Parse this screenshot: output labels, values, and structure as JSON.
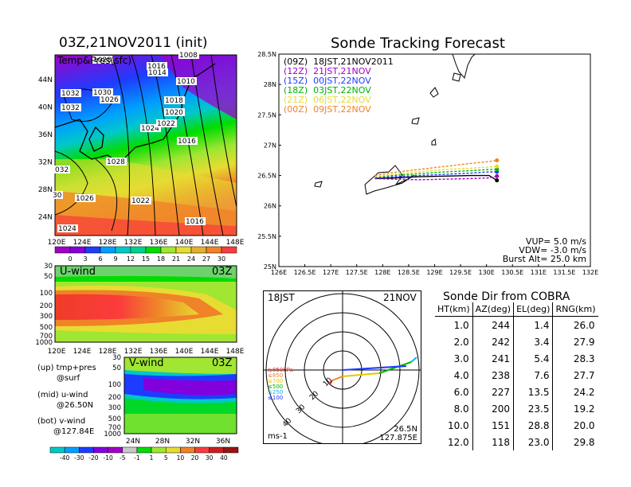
{
  "left_panel": {
    "title": "03Z,21NOV2011 (init)",
    "map_label": "Temp&Pres(sfc)",
    "x_ticks": [
      "120E",
      "124E",
      "128E",
      "132E",
      "136E",
      "140E",
      "144E",
      "148E"
    ],
    "y_ticks": [
      "24N",
      "28N",
      "32N",
      "36N",
      "40N",
      "44N"
    ],
    "isobar_labels": [
      "1028",
      "1016",
      "1014",
      "1008",
      "1010",
      "1032",
      "1030",
      "1026",
      "1032",
      "1018",
      "1020",
      "1024",
      "1022",
      "1016",
      "1028",
      "032",
      "1026",
      "1022",
      "30",
      "1016",
      "1024"
    ],
    "colorbar_labels": [
      "0",
      "3",
      "6",
      "9",
      "12",
      "15",
      "18",
      "21",
      "24",
      "27",
      "30"
    ],
    "colors": [
      "#a000c8",
      "#8200dc",
      "#1e3cff",
      "#00a0ff",
      "#00c8c8",
      "#00d28c",
      "#00dc00",
      "#a0e632",
      "#e6dc32",
      "#e6af2d",
      "#f08228",
      "#fa3c3c"
    ]
  },
  "uwind_panel": {
    "label": "U-wind",
    "time": "03Z",
    "y_ticks": [
      "30",
      "50",
      "100",
      "200",
      "300",
      "500",
      "700",
      "1000"
    ],
    "x_ticks": [
      "120E",
      "124E",
      "128E",
      "132E",
      "136E",
      "140E",
      "144E",
      "148E"
    ]
  },
  "vwind_panel": {
    "label": "V-wind",
    "time": "03Z",
    "y_ticks": [
      "30",
      "50",
      "100",
      "200",
      "300",
      "500",
      "700",
      "1000"
    ],
    "x_ticks": [
      "24N",
      "28N",
      "32N",
      "36N"
    ],
    "colorbar_labels": [
      "-40",
      "-30",
      "-20",
      "-10",
      "-5",
      "-1",
      "1",
      "5",
      "10",
      "20",
      "30",
      "40"
    ]
  },
  "captions": {
    "up": "(up) tmp+pres",
    "up_sub": "@surf",
    "mid": "(mid) u-wind",
    "mid_sub": "@26.50N",
    "bot": "(bot) v-wind",
    "bot_sub": "@127.84E"
  },
  "tracking": {
    "title": "Sonde Tracking Forecast",
    "legend": [
      {
        "label": "(09Z)  18JST,21NOV2011",
        "color": "#000000"
      },
      {
        "label": "(12Z)  21JST,21NOV",
        "color": "#a000c8"
      },
      {
        "label": "(15Z)  00JST,22NOV",
        "color": "#1e3cff"
      },
      {
        "label": "(18Z)  03JST,22NOV",
        "color": "#00b400"
      },
      {
        "label": "(21Z)  06JST,22NOV",
        "color": "#e6dc32"
      },
      {
        "label": "(00Z)  09JST,22NOV",
        "color": "#f08228"
      }
    ],
    "params": [
      "VUP= 5.0 m/s",
      "VDW= -3.0 m/s",
      "Burst Alt= 25.0 km"
    ]
  },
  "polar": {
    "time": "18JST",
    "date": "21NOV",
    "location_lat": "26.5N",
    "location_lon": "127.875E",
    "unit": "ms-1",
    "ring_labels": [
      "10",
      "20",
      "30",
      "40"
    ],
    "pressure_legend": [
      "≥850hPa",
      "≤850",
      "≤700",
      "≤500",
      "≤250",
      "≤100"
    ],
    "pressure_colors": [
      "#e61e1e",
      "#f08228",
      "#e6c800",
      "#00b400",
      "#00b4ff",
      "#1e3cff"
    ]
  },
  "cobra": {
    "title": "Sonde Dir from COBRA",
    "headers": [
      "HT(km)",
      "AZ(deg)",
      "EL(deg)",
      "RNG(km)"
    ],
    "rows": [
      [
        "1.0",
        "244",
        "1.4",
        "26.0"
      ],
      [
        "2.0",
        "242",
        "3.4",
        "27.9"
      ],
      [
        "3.0",
        "241",
        "5.4",
        "28.3"
      ],
      [
        "4.0",
        "238",
        "7.6",
        "27.7"
      ],
      [
        "6.0",
        "227",
        "13.5",
        "24.2"
      ],
      [
        "8.0",
        "200",
        "23.5",
        "19.2"
      ],
      [
        "10.0",
        "151",
        "28.8",
        "20.0"
      ],
      [
        "12.0",
        "118",
        "23.0",
        "29.8"
      ]
    ]
  },
  "chart_data": [
    {
      "type": "line",
      "title": "Sonde Tracking Forecast",
      "x_ticks": [
        "126E",
        "126.5E",
        "127E",
        "127.5E",
        "128E",
        "128.5E",
        "129E",
        "129.5E",
        "130E",
        "130.5E",
        "131E",
        "131.5E",
        "132E"
      ],
      "y_ticks": [
        "25N",
        "25.5N",
        "26N",
        "26.5N",
        "27N",
        "27.5N",
        "28N",
        "28.5N"
      ],
      "xlim": [
        126,
        132
      ],
      "ylim": [
        25,
        28.5
      ],
      "x": [
        127.85,
        128.2,
        128.7,
        129.2,
        129.7,
        130.05,
        130.2
      ],
      "series": [
        {
          "name": "(09Z)  18JST,21NOV2011",
          "color": "#000000",
          "y": [
            26.45,
            26.46,
            26.48,
            26.49,
            26.5,
            26.5,
            26.42
          ]
        },
        {
          "name": "(12Z)  21JST,21NOV",
          "color": "#a000c8",
          "y": [
            26.45,
            26.44,
            26.43,
            26.44,
            26.45,
            26.46,
            26.49
          ]
        },
        {
          "name": "(15Z)  00JST,22NOV",
          "color": "#1e3cff",
          "y": [
            26.46,
            26.48,
            26.5,
            26.52,
            26.54,
            26.56,
            26.56
          ]
        },
        {
          "name": "(18Z)  03JST,22NOV",
          "color": "#00b400",
          "y": [
            26.47,
            26.5,
            26.53,
            26.56,
            26.58,
            26.6,
            26.6
          ]
        },
        {
          "name": "(21Z)  06JST,22NOV",
          "color": "#e6dc32",
          "y": [
            26.48,
            26.52,
            26.56,
            26.6,
            26.62,
            26.64,
            26.65
          ]
        },
        {
          "name": "(00Z)  09JST,22NOV",
          "color": "#f08228",
          "y": [
            26.5,
            26.55,
            26.6,
            26.65,
            26.7,
            26.73,
            26.75
          ]
        }
      ]
    },
    {
      "type": "table",
      "title": "Sonde Dir from COBRA",
      "columns": [
        "HT(km)",
        "AZ(deg)",
        "EL(deg)",
        "RNG(km)"
      ],
      "ht_km": [
        1.0,
        2.0,
        3.0,
        4.0,
        6.0,
        8.0,
        10.0,
        12.0
      ],
      "az_deg": [
        244,
        242,
        241,
        238,
        227,
        200,
        151,
        118
      ],
      "el_deg": [
        1.4,
        3.4,
        5.4,
        7.6,
        13.5,
        23.5,
        28.8,
        23.0
      ],
      "rng_km": [
        26.0,
        27.9,
        28.3,
        27.7,
        24.2,
        19.2,
        20.0,
        29.8
      ]
    }
  ]
}
